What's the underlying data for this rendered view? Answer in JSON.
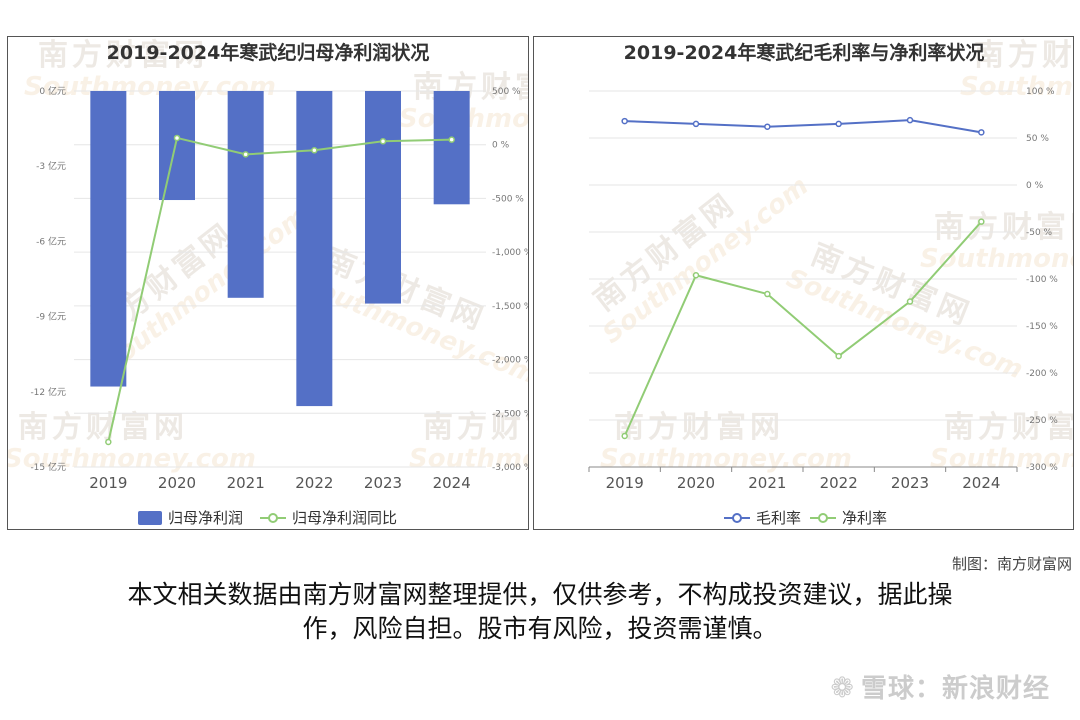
{
  "chart_data": [
    {
      "type": "bar+line",
      "title": "2019-2024年寒武纪归母净利润状况",
      "categories": [
        "2019",
        "2020",
        "2021",
        "2022",
        "2023",
        "2024"
      ],
      "series": [
        {
          "name": "归母净利润",
          "type": "bar",
          "axis": "left",
          "color": "#5470c6",
          "values": [
            -11.79,
            -4.35,
            -8.25,
            -12.57,
            -8.48,
            -4.52
          ]
        },
        {
          "name": "归母净利润同比",
          "type": "line",
          "axis": "right",
          "color": "#91cc75",
          "values": [
            -2767,
            63,
            -90,
            -52,
            32,
            47
          ]
        }
      ],
      "y_left": {
        "min": -15,
        "max": 0,
        "ticks": [
          "0 亿元",
          "-3 亿元",
          "-6 亿元",
          "-9 亿元",
          "-12 亿元",
          "-15 亿元"
        ],
        "tick_values": [
          0,
          -3,
          -6,
          -9,
          -12,
          -15
        ]
      },
      "y_right": {
        "min": -3000,
        "max": 500,
        "ticks": [
          "500 %",
          "0 %",
          "-500 %",
          "-1,000 %",
          "-1,500 %",
          "-2,000 %",
          "-2,500 %",
          "-3,000 %"
        ],
        "tick_values": [
          500,
          0,
          -500,
          -1000,
          -1500,
          -2000,
          -2500,
          -3000
        ]
      },
      "legend": "bottom",
      "grid": true
    },
    {
      "type": "line",
      "title": "2019-2024年寒武纪毛利率与净利率状况",
      "categories": [
        "2019",
        "2020",
        "2021",
        "2022",
        "2023",
        "2024"
      ],
      "series": [
        {
          "name": "毛利率",
          "color": "#5470c6",
          "values": [
            68,
            65,
            62,
            65,
            69,
            56
          ]
        },
        {
          "name": "净利率",
          "color": "#91cc75",
          "values": [
            -267,
            -96,
            -116,
            -182,
            -124,
            -39
          ]
        }
      ],
      "y_right": {
        "min": -300,
        "max": 100,
        "ticks": [
          "100 %",
          "50 %",
          "0 %",
          "-50 %",
          "-100 %",
          "-150 %",
          "-200 %",
          "-250 %",
          "-300 %"
        ],
        "tick_values": [
          100,
          50,
          0,
          -50,
          -100,
          -150,
          -200,
          -250,
          -300
        ]
      },
      "legend": "bottom",
      "grid": true
    }
  ],
  "watermark": {
    "cn": "南方财富网",
    "en": "outhmoney.com"
  },
  "footer": {
    "credit": "制图：南方财富网",
    "disclaimer_line1": "本文相关数据由南方财富网整理提供，仅供参考，不构成投资建议，据此操",
    "disclaimer_line2": "作，风险自担。股市有风险，投资需谨慎。",
    "xueqiu": "雪球：新浪财经"
  }
}
